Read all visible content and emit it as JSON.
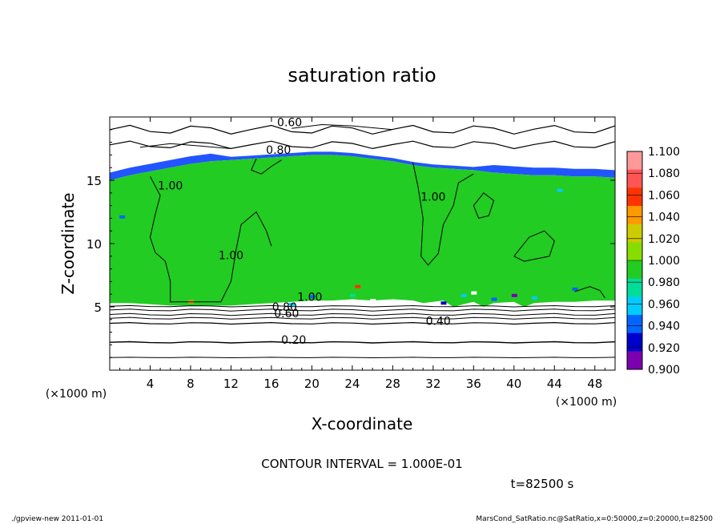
{
  "chart_data": {
    "type": "heatmap",
    "title": "saturation ratio",
    "xlabel": "X-coordinate",
    "ylabel": "Z-coordinate",
    "x_unit": "(×1000 m)",
    "y_unit": "(×1000 m)",
    "xlim": [
      0,
      50
    ],
    "ylim": [
      0,
      20
    ],
    "x_ticks": [
      "4",
      "8",
      "12",
      "16",
      "20",
      "24",
      "28",
      "32",
      "36",
      "40",
      "44",
      "48"
    ],
    "y_ticks": [
      "5",
      "10",
      "15"
    ],
    "colorbar": {
      "levels": [
        "1.100",
        "1.080",
        "1.060",
        "1.040",
        "1.020",
        "1.000",
        "0.980",
        "0.960",
        "0.940",
        "0.920",
        "0.900"
      ],
      "colors": [
        "#ff9999",
        "#ff5555",
        "#ff3300",
        "#ff9900",
        "#cccc00",
        "#88dd00",
        "#22cc22",
        "#00dd99",
        "#00ccff",
        "#0066ff",
        "#0000cc",
        "#7a00b0"
      ]
    },
    "contour_labels": [
      {
        "text": "0.60",
        "x": 17.8,
        "y": 19.4
      },
      {
        "text": "0.80",
        "x": 16.7,
        "y": 17.2
      },
      {
        "text": "1.00",
        "x": 6.0,
        "y": 14.4
      },
      {
        "text": "1.00",
        "x": 12.0,
        "y": 8.9
      },
      {
        "text": "1.00",
        "x": 32.0,
        "y": 13.5
      },
      {
        "text": "1.00",
        "x": 19.8,
        "y": 5.6
      },
      {
        "text": "0.80",
        "x": 17.3,
        "y": 4.8
      },
      {
        "text": "0.60",
        "x": 17.5,
        "y": 4.3
      },
      {
        "text": "0.40",
        "x": 32.5,
        "y": 3.7
      },
      {
        "text": "0.20",
        "x": 18.2,
        "y": 2.2
      }
    ],
    "regions": {
      "saturated_band_z": [
        5.4,
        16.8
      ],
      "dominant_value": 1.0
    }
  },
  "contour_interval": "CONTOUR INTERVAL = 1.000E-01",
  "time_label": "t=82500 s",
  "footer_left": "./gpview-new   2011-01-01",
  "footer_right": "MarsCond_SatRatio.nc@SatRatio,x=0:50000,z=0:20000,t=82500"
}
